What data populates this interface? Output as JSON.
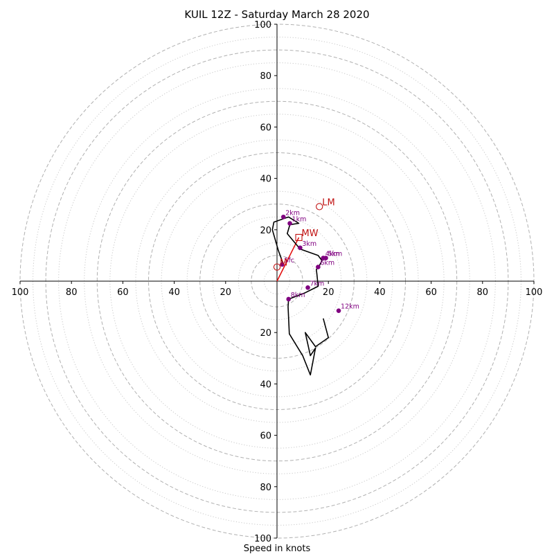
{
  "chart_data": {
    "type": "hodograph",
    "title": "KUIL 12Z - Saturday March 28 2020",
    "xlabel": "Speed in knots",
    "ylabel": "",
    "xlim": [
      -100,
      100
    ],
    "ylim": [
      -100,
      100
    ],
    "rings": {
      "major": [
        10,
        30,
        50,
        70,
        90,
        100
      ],
      "minor": [
        5,
        15,
        25,
        35,
        45,
        55,
        65,
        75,
        85,
        95
      ]
    },
    "x_ticks": [
      {
        "value": -100,
        "label": "100"
      },
      {
        "value": -80,
        "label": "80"
      },
      {
        "value": -60,
        "label": "60"
      },
      {
        "value": -40,
        "label": "40"
      },
      {
        "value": -20,
        "label": "20"
      },
      {
        "value": 20,
        "label": "20"
      },
      {
        "value": 40,
        "label": "40"
      },
      {
        "value": 60,
        "label": "60"
      },
      {
        "value": 80,
        "label": "80"
      },
      {
        "value": 100,
        "label": "100"
      }
    ],
    "y_ticks": [
      {
        "value": 100,
        "label": "100"
      },
      {
        "value": 80,
        "label": "80"
      },
      {
        "value": 60,
        "label": "60"
      },
      {
        "value": 40,
        "label": "40"
      },
      {
        "value": 20,
        "label": "20"
      },
      {
        "value": -20,
        "label": "20"
      },
      {
        "value": -40,
        "label": "40"
      },
      {
        "value": -60,
        "label": "60"
      },
      {
        "value": -80,
        "label": "80"
      },
      {
        "value": -100,
        "label": "100"
      }
    ],
    "hodograph": {
      "u": [
        2.5,
        0.5,
        -1.8,
        -1.2,
        4.5,
        8.5,
        5.0,
        4.0,
        9.0,
        16.0,
        17.5,
        16.5,
        15.3,
        15.5,
        16.0,
        14.0,
        11.0,
        8.5,
        4.5,
        4.3,
        4.8,
        10.0,
        13.0,
        15.0,
        13.0,
        11.0,
        15.0,
        20.0,
        18.0
      ],
      "v": [
        6.5,
        12.0,
        20.0,
        23.0,
        25.0,
        22.5,
        22.0,
        18.5,
        12.5,
        10.0,
        8.0,
        6.0,
        4.5,
        3.0,
        -2.0,
        -3.0,
        -4.5,
        -5.5,
        -7.0,
        -10.0,
        -20.5,
        -29.0,
        -36.5,
        -26.0,
        -29.0,
        -20.0,
        -25.5,
        -22.0,
        -14.5
      ]
    },
    "height_markers": [
      {
        "label": "Sfc",
        "u": 2.0,
        "v": 6.5
      },
      {
        "label": "1km",
        "u": 5.0,
        "v": 22.5
      },
      {
        "label": "2km",
        "u": 2.5,
        "v": 25.0
      },
      {
        "label": "3km",
        "u": 9.0,
        "v": 13.0
      },
      {
        "label": "4km",
        "u": 18.0,
        "v": 9.0
      },
      {
        "label": "5km",
        "u": 19.0,
        "v": 9.0
      },
      {
        "label": "6km",
        "u": 16.0,
        "v": 5.5
      },
      {
        "label": "7km",
        "u": 12.0,
        "v": -2.5
      },
      {
        "label": "8km",
        "u": 4.5,
        "v": -7.0
      },
      {
        "label": "12km",
        "u": 24.0,
        "v": -11.5
      }
    ],
    "storm_motion": [
      {
        "label": "LM",
        "u": 16.5,
        "v": 29.0,
        "marker": "circle"
      },
      {
        "label": "MW",
        "u": 8.5,
        "v": 17.0,
        "marker": "square"
      },
      {
        "label": "RM",
        "u": 0.0,
        "v": 5.5,
        "marker": "circle",
        "visible_text": "M"
      }
    ],
    "shear_vector": {
      "from": [
        0,
        0
      ],
      "to": [
        8.5,
        17.0
      ]
    },
    "colors": {
      "trace": "#000000",
      "height_marker": "#800080",
      "storm_motion": "#c01010",
      "grid": "#b0b0b0"
    }
  }
}
